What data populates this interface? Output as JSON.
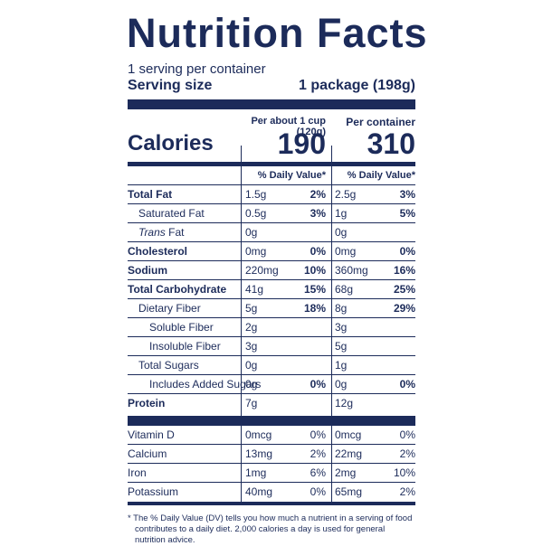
{
  "title": "Nutrition Facts",
  "servings_per_container": "1 serving per container",
  "serving_size_label": "Serving size",
  "serving_size_value": "1 package (198g)",
  "col1_header": "Per about 1 cup (120g)",
  "col2_header": "Per container",
  "calories_label": "Calories",
  "calories_col1": "190",
  "calories_col2": "310",
  "dv_header": "% Daily Value*",
  "nutrients": [
    {
      "name": "Total Fat",
      "amt1": "1.5g",
      "dv1": "2%",
      "amt2": "2.5g",
      "dv2": "3%"
    },
    {
      "name": "Saturated Fat",
      "amt1": "0.5g",
      "dv1": "3%",
      "amt2": "1g",
      "dv2": "5%"
    },
    {
      "name_italic": "Trans",
      "name_rest": " Fat",
      "amt1": "0g",
      "dv1": "",
      "amt2": "0g",
      "dv2": ""
    },
    {
      "name": "Cholesterol",
      "amt1": "0mg",
      "dv1": "0%",
      "amt2": "0mg",
      "dv2": "0%"
    },
    {
      "name": "Sodium",
      "amt1": "220mg",
      "dv1": "10%",
      "amt2": "360mg",
      "dv2": "16%"
    },
    {
      "name": "Total Carbohydrate",
      "amt1": "41g",
      "dv1": "15%",
      "amt2": "68g",
      "dv2": "25%"
    },
    {
      "name": "Dietary Fiber",
      "amt1": "5g",
      "dv1": "18%",
      "amt2": "8g",
      "dv2": "29%"
    },
    {
      "name": "Soluble Fiber",
      "amt1": "2g",
      "dv1": "",
      "amt2": "3g",
      "dv2": ""
    },
    {
      "name": "Insoluble Fiber",
      "amt1": "3g",
      "dv1": "",
      "amt2": "5g",
      "dv2": ""
    },
    {
      "name": "Total Sugars",
      "amt1": "0g",
      "dv1": "",
      "amt2": "1g",
      "dv2": ""
    },
    {
      "name": "Includes Added Sugars",
      "amt1": "0g",
      "dv1": "0%",
      "amt2": "0g",
      "dv2": "0%"
    },
    {
      "name": "Protein",
      "amt1": "7g",
      "dv1": "",
      "amt2": "12g",
      "dv2": ""
    }
  ],
  "vitamins": [
    {
      "name": "Vitamin D",
      "amt1": "0mcg",
      "dv1": "0%",
      "amt2": "0mcg",
      "dv2": "0%"
    },
    {
      "name": "Calcium",
      "amt1": "13mg",
      "dv1": "2%",
      "amt2": "22mg",
      "dv2": "2%"
    },
    {
      "name": "Iron",
      "amt1": "1mg",
      "dv1": "6%",
      "amt2": "2mg",
      "dv2": "10%"
    },
    {
      "name": "Potassium",
      "amt1": "40mg",
      "dv1": "0%",
      "amt2": "65mg",
      "dv2": "2%"
    }
  ],
  "footnote_line1": "* The % Daily Value (DV) tells you how much a nutrient in a serving of food",
  "footnote_line2": "contributes to a daily diet. 2,000 calories a day is used for general nutrition advice.",
  "colors": {
    "ink": "#1c2b5a",
    "background": "#ffffff"
  }
}
